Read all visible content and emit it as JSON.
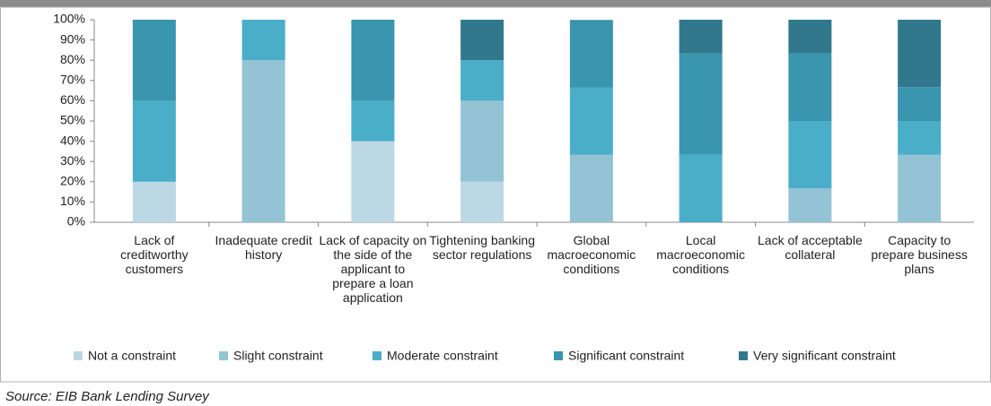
{
  "chart_data": {
    "type": "stacked_bar",
    "categories": [
      "Lack of creditworthy customers",
      "Inadequate credit history",
      "Lack of capacity on the side of the applicant to prepare a loan application",
      "Tightening banking sector regulations",
      "Global macroeconomic conditions",
      "Local macroeconomic conditions",
      "Lack of acceptable collateral",
      "Capacity to prepare business plans"
    ],
    "series": [
      {
        "name": "Not a constraint",
        "color": "#bcd8e4",
        "values": [
          20,
          0,
          40,
          20,
          0,
          0,
          0,
          0
        ]
      },
      {
        "name": "Slight constraint",
        "color": "#93c3d5",
        "values": [
          0,
          80,
          0,
          40,
          33.3,
          0,
          16.7,
          33.3
        ]
      },
      {
        "name": "Moderate constraint",
        "color": "#4aaec9",
        "values": [
          40,
          20,
          20,
          20,
          33.3,
          33.3,
          33.3,
          16.7
        ]
      },
      {
        "name": "Significant constraint",
        "color": "#3a95ae",
        "values": [
          40,
          0,
          40,
          0,
          33.3,
          50,
          33.3,
          16.7
        ]
      },
      {
        "name": "Very significant constraint",
        "color": "#31788c",
        "values": [
          0,
          0,
          0,
          20,
          0,
          16.7,
          16.7,
          33.3
        ]
      }
    ],
    "ylim": [
      0,
      100
    ],
    "yticks": [
      {
        "value": 0,
        "label": "0%"
      },
      {
        "value": 10,
        "label": "10%"
      },
      {
        "value": 20,
        "label": "20%"
      },
      {
        "value": 30,
        "label": "30%"
      },
      {
        "value": 40,
        "label": "40%"
      },
      {
        "value": 50,
        "label": "50%"
      },
      {
        "value": 60,
        "label": "60%"
      },
      {
        "value": 70,
        "label": "70%"
      },
      {
        "value": 80,
        "label": "80%"
      },
      {
        "value": 90,
        "label": "90%"
      },
      {
        "value": 100,
        "label": "100%"
      }
    ],
    "legend": "bottom",
    "source": "Source:  EIB Bank Lending Survey"
  }
}
